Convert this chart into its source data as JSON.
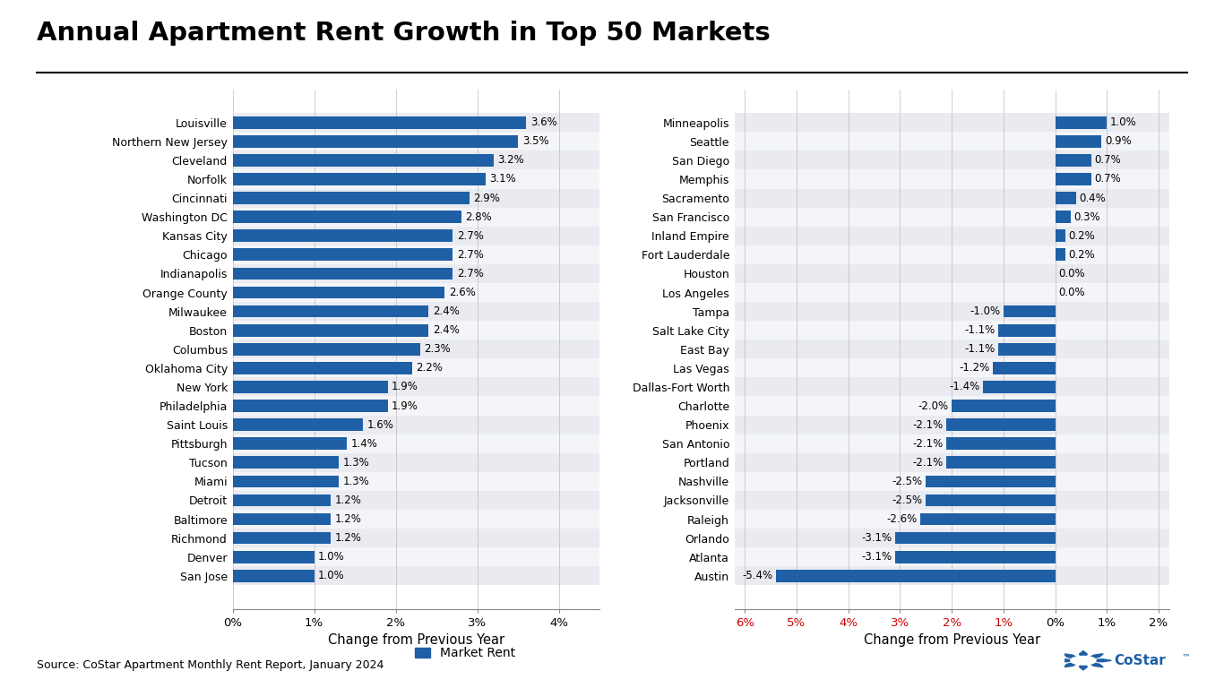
{
  "title": "Annual Apartment Rent Growth in Top 50 Markets",
  "source": "Source: CoStar Apartment Monthly Rent Report, January 2024",
  "bar_color": "#1f5fa6",
  "background_color": "#ffffff",
  "left_markets": [
    [
      "Louisville",
      3.6
    ],
    [
      "Northern New Jersey",
      3.5
    ],
    [
      "Cleveland",
      3.2
    ],
    [
      "Norfolk",
      3.1
    ],
    [
      "Cincinnati",
      2.9
    ],
    [
      "Washington DC",
      2.8
    ],
    [
      "Kansas City",
      2.7
    ],
    [
      "Chicago",
      2.7
    ],
    [
      "Indianapolis",
      2.7
    ],
    [
      "Orange County",
      2.6
    ],
    [
      "Milwaukee",
      2.4
    ],
    [
      "Boston",
      2.4
    ],
    [
      "Columbus",
      2.3
    ],
    [
      "Oklahoma City",
      2.2
    ],
    [
      "New York",
      1.9
    ],
    [
      "Philadelphia",
      1.9
    ],
    [
      "Saint Louis",
      1.6
    ],
    [
      "Pittsburgh",
      1.4
    ],
    [
      "Tucson",
      1.3
    ],
    [
      "Miami",
      1.3
    ],
    [
      "Detroit",
      1.2
    ],
    [
      "Baltimore",
      1.2
    ],
    [
      "Richmond",
      1.2
    ],
    [
      "Denver",
      1.0
    ],
    [
      "San Jose",
      1.0
    ]
  ],
  "right_markets": [
    [
      "Minneapolis",
      1.0
    ],
    [
      "Seattle",
      0.9
    ],
    [
      "San Diego",
      0.7
    ],
    [
      "Memphis",
      0.7
    ],
    [
      "Sacramento",
      0.4
    ],
    [
      "San Francisco",
      0.3
    ],
    [
      "Inland Empire",
      0.2
    ],
    [
      "Fort Lauderdale",
      0.2
    ],
    [
      "Houston",
      0.0
    ],
    [
      "Los Angeles",
      0.0
    ],
    [
      "Tampa",
      -1.0
    ],
    [
      "Salt Lake City",
      -1.1
    ],
    [
      "East Bay",
      -1.1
    ],
    [
      "Las Vegas",
      -1.2
    ],
    [
      "Dallas-Fort Worth",
      -1.4
    ],
    [
      "Charlotte",
      -2.0
    ],
    [
      "Phoenix",
      -2.1
    ],
    [
      "San Antonio",
      -2.1
    ],
    [
      "Portland",
      -2.1
    ],
    [
      "Nashville",
      -2.5
    ],
    [
      "Jacksonville",
      -2.5
    ],
    [
      "Raleigh",
      -2.6
    ],
    [
      "Orlando",
      -3.1
    ],
    [
      "Atlanta",
      -3.1
    ],
    [
      "Austin",
      -5.4
    ]
  ],
  "xlabel": "Change from Previous Year",
  "legend_label": "Market Rent",
  "left_xlim": [
    0,
    4.5
  ],
  "right_xlim": [
    -6.2,
    2.2
  ],
  "left_xticks": [
    0,
    1,
    2,
    3,
    4
  ],
  "left_xticklabels": [
    "0%",
    "1%",
    "2%",
    "3%",
    "4%"
  ],
  "right_xticks": [
    -6,
    -5,
    -4,
    -3,
    -2,
    -1,
    0,
    1,
    2
  ],
  "right_xticklabels": [
    "6%",
    "5%",
    "4%",
    "3%",
    "2%",
    "1%",
    "0%",
    "1%",
    "2%"
  ]
}
